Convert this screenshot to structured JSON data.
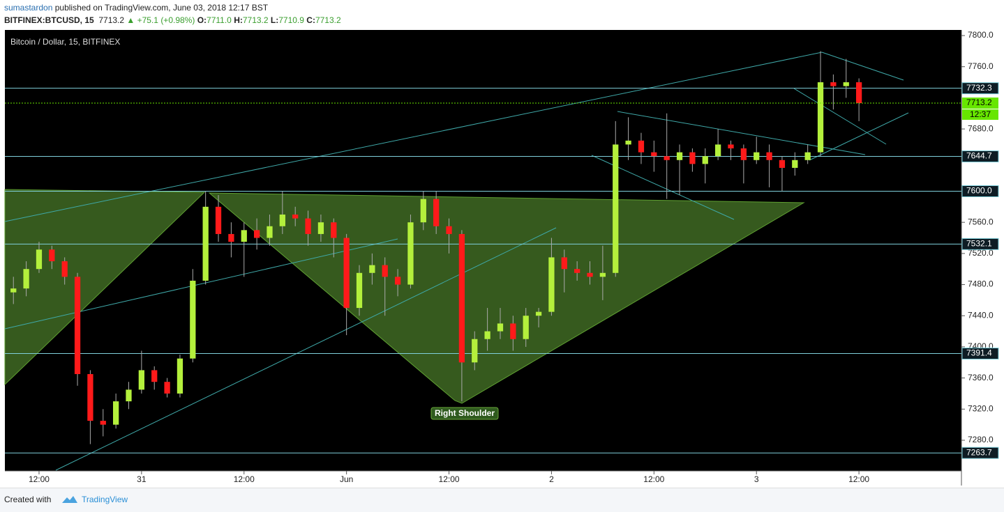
{
  "header": {
    "author": "sumastardon",
    "published": "published on TradingView.com, June 03, 2018 12:17 BST",
    "symbol": "BITFINEX:BTCUSD, 15",
    "price": "7713.2",
    "change": "▲ +75.1 (+0.98%)",
    "ohlc": [
      {
        "key": "O:",
        "value": "7711.0"
      },
      {
        "key": "H:",
        "value": "7713.2"
      },
      {
        "key": "L:",
        "value": "7710.9"
      },
      {
        "key": "C:",
        "value": "7713.2"
      }
    ]
  },
  "footer": {
    "created": "Created with",
    "brand": "TradingView"
  },
  "chart_data": {
    "type": "candlestick",
    "title": "Bitcoin / Dollar, 15, BITFINEX",
    "annotation": "Right Shoulder",
    "up_color": "#b4f03c",
    "down_color": "#ff1a1a",
    "level_color": "#7fd0dc",
    "price_color": "#67e600",
    "xlim": [
      8,
      120
    ],
    "ylim": [
      7240.6,
      7807.2
    ],
    "xticks": [
      {
        "value": 12,
        "label": "12:00"
      },
      {
        "value": 24,
        "label": "31"
      },
      {
        "value": 36,
        "label": "12:00"
      },
      {
        "value": 48,
        "label": "Jun"
      },
      {
        "value": 60,
        "label": "12:00"
      },
      {
        "value": 72,
        "label": "2"
      },
      {
        "value": 84,
        "label": "12:00"
      },
      {
        "value": 96,
        "label": "3"
      },
      {
        "value": 108,
        "label": "12:00"
      }
    ],
    "yticks": [
      {
        "value": 7800,
        "label": "7800.0"
      },
      {
        "value": 7760,
        "label": "7760.0"
      },
      {
        "value": 7680,
        "label": "7680.0"
      },
      {
        "value": 7560,
        "label": "7560.0"
      },
      {
        "value": 7520,
        "label": "7520.0"
      },
      {
        "value": 7480,
        "label": "7480.0"
      },
      {
        "value": 7440,
        "label": "7440.0"
      },
      {
        "value": 7400,
        "label": "7400.0"
      },
      {
        "value": 7360,
        "label": "7360.0"
      },
      {
        "value": 7320,
        "label": "7320.0"
      },
      {
        "value": 7280,
        "label": "7280.0"
      }
    ],
    "levels": [
      {
        "value": 7732.3,
        "label": "7732.3"
      },
      {
        "value": 7644.7,
        "label": "7644.7"
      },
      {
        "value": 7600,
        "label": "7600.0"
      },
      {
        "value": 7532.1,
        "label": "7532.1"
      },
      {
        "value": 7391.4,
        "label": "7391.4"
      },
      {
        "value": 7263.7,
        "label": "7263.7"
      }
    ],
    "last_price": {
      "value": 7713.2,
      "label": "7713.2"
    },
    "countdown": "12:37",
    "x": [
      9,
      10.5,
      12,
      13.5,
      15,
      16.5,
      18,
      19.5,
      21,
      22.5,
      24,
      25.5,
      27,
      28.5,
      30,
      31.5,
      33,
      34.5,
      36,
      37.5,
      39,
      40.5,
      42,
      43.5,
      45,
      46.5,
      48,
      49.5,
      51,
      52.5,
      54,
      55.5,
      57,
      58.5,
      60,
      61.5,
      63,
      64.5,
      66,
      67.5,
      69,
      70.5,
      72,
      73.5,
      75,
      76.5,
      78,
      79.5,
      81,
      82.5,
      84,
      85.5,
      87,
      88.5,
      90,
      91.5,
      93,
      94.5,
      96,
      97.5,
      99,
      100.5,
      102,
      103.5,
      105,
      106.5,
      108
    ],
    "ohlc": [
      [
        7470,
        7490,
        7455,
        7475
      ],
      [
        7475,
        7510,
        7465,
        7500
      ],
      [
        7500,
        7535,
        7495,
        7525
      ],
      [
        7525,
        7530,
        7500,
        7510
      ],
      [
        7510,
        7515,
        7480,
        7490
      ],
      [
        7490,
        7495,
        7350,
        7365
      ],
      [
        7365,
        7370,
        7275,
        7305
      ],
      [
        7305,
        7320,
        7285,
        7300
      ],
      [
        7300,
        7340,
        7295,
        7330
      ],
      [
        7330,
        7355,
        7320,
        7345
      ],
      [
        7345,
        7395,
        7340,
        7370
      ],
      [
        7370,
        7375,
        7345,
        7355
      ],
      [
        7355,
        7360,
        7335,
        7340
      ],
      [
        7340,
        7390,
        7335,
        7385
      ],
      [
        7385,
        7500,
        7380,
        7485
      ],
      [
        7485,
        7600,
        7480,
        7580
      ],
      [
        7580,
        7595,
        7535,
        7545
      ],
      [
        7545,
        7560,
        7515,
        7535
      ],
      [
        7535,
        7560,
        7490,
        7550
      ],
      [
        7550,
        7565,
        7525,
        7540
      ],
      [
        7540,
        7570,
        7530,
        7555
      ],
      [
        7555,
        7600,
        7545,
        7570
      ],
      [
        7570,
        7580,
        7555,
        7565
      ],
      [
        7565,
        7575,
        7530,
        7545
      ],
      [
        7545,
        7570,
        7535,
        7560
      ],
      [
        7560,
        7565,
        7515,
        7540
      ],
      [
        7540,
        7545,
        7415,
        7450
      ],
      [
        7450,
        7505,
        7440,
        7495
      ],
      [
        7495,
        7520,
        7480,
        7505
      ],
      [
        7505,
        7515,
        7440,
        7490
      ],
      [
        7490,
        7500,
        7465,
        7480
      ],
      [
        7480,
        7570,
        7475,
        7560
      ],
      [
        7560,
        7600,
        7550,
        7590
      ],
      [
        7590,
        7600,
        7545,
        7555
      ],
      [
        7555,
        7565,
        7520,
        7545
      ],
      [
        7545,
        7550,
        7330,
        7380
      ],
      [
        7380,
        7420,
        7370,
        7410
      ],
      [
        7410,
        7450,
        7395,
        7420
      ],
      [
        7420,
        7450,
        7410,
        7430
      ],
      [
        7430,
        7440,
        7395,
        7410
      ],
      [
        7410,
        7450,
        7400,
        7440
      ],
      [
        7440,
        7450,
        7425,
        7445
      ],
      [
        7445,
        7540,
        7440,
        7515
      ],
      [
        7515,
        7525,
        7470,
        7500
      ],
      [
        7500,
        7510,
        7485,
        7495
      ],
      [
        7495,
        7510,
        7480,
        7490
      ],
      [
        7490,
        7530,
        7460,
        7495
      ],
      [
        7495,
        7690,
        7490,
        7660
      ],
      [
        7660,
        7695,
        7640,
        7665
      ],
      [
        7665,
        7675,
        7635,
        7650
      ],
      [
        7650,
        7665,
        7625,
        7645
      ],
      [
        7645,
        7700,
        7590,
        7640
      ],
      [
        7640,
        7660,
        7595,
        7650
      ],
      [
        7650,
        7655,
        7625,
        7635
      ],
      [
        7635,
        7655,
        7610,
        7645
      ],
      [
        7645,
        7680,
        7640,
        7660
      ],
      [
        7660,
        7665,
        7640,
        7655
      ],
      [
        7655,
        7660,
        7610,
        7640
      ],
      [
        7640,
        7670,
        7635,
        7650
      ],
      [
        7650,
        7660,
        7605,
        7640
      ],
      [
        7640,
        7645,
        7600,
        7630
      ],
      [
        7630,
        7650,
        7620,
        7640
      ],
      [
        7640,
        7660,
        7635,
        7650
      ],
      [
        7650,
        7780,
        7645,
        7740
      ],
      [
        7740,
        7750,
        7705,
        7735
      ],
      [
        7735,
        7770,
        7720,
        7740
      ],
      [
        7740,
        7745,
        7690,
        7713.2
      ]
    ]
  }
}
